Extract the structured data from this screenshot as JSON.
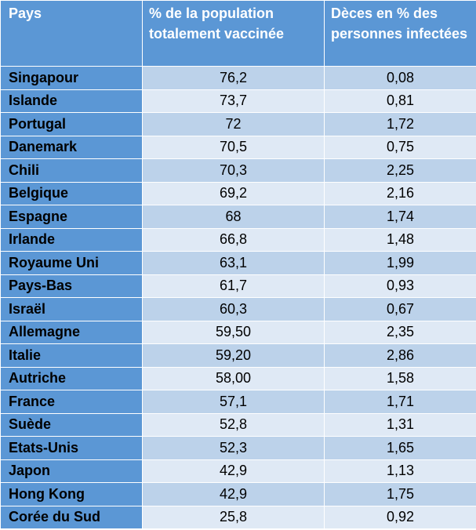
{
  "headers": {
    "country": "Pays",
    "vaccinated": "% de la population totalement vaccinée",
    "deaths": "Dèces en % des personnes infectées"
  },
  "rows": [
    {
      "country": "Singapour",
      "vaccinated": "76,2",
      "deaths": "0,08"
    },
    {
      "country": "Islande",
      "vaccinated": "73,7",
      "deaths": "0,81"
    },
    {
      "country": "Portugal",
      "vaccinated": "72",
      "deaths": "1,72"
    },
    {
      "country": "Danemark",
      "vaccinated": "70,5",
      "deaths": "0,75"
    },
    {
      "country": "Chili",
      "vaccinated": "70,3",
      "deaths": "2,25"
    },
    {
      "country": "Belgique",
      "vaccinated": "69,2",
      "deaths": "2,16"
    },
    {
      "country": "Espagne",
      "vaccinated": "68",
      "deaths": "1,74"
    },
    {
      "country": "Irlande",
      "vaccinated": "66,8",
      "deaths": "1,48"
    },
    {
      "country": "Royaume Uni",
      "vaccinated": "63,1",
      "deaths": "1,99"
    },
    {
      "country": "Pays-Bas",
      "vaccinated": "61,7",
      "deaths": "0,93"
    },
    {
      "country": "Israël",
      "vaccinated": "60,3",
      "deaths": "0,67"
    },
    {
      "country": "Allemagne",
      "vaccinated": "59,50",
      "deaths": "2,35"
    },
    {
      "country": "Italie",
      "vaccinated": "59,20",
      "deaths": "2,86"
    },
    {
      "country": "Autriche",
      "vaccinated": "58,00",
      "deaths": "1,58"
    },
    {
      "country": "France",
      "vaccinated": "57,1",
      "deaths": "1,71"
    },
    {
      "country": "Suède",
      "vaccinated": "52,8",
      "deaths": "1,31"
    },
    {
      "country": "Etats-Unis",
      "vaccinated": "52,3",
      "deaths": "1,65"
    },
    {
      "country": "Japon",
      "vaccinated": "42,9",
      "deaths": "1,13"
    },
    {
      "country": "Hong Kong",
      "vaccinated": "42,9",
      "deaths": "1,75"
    },
    {
      "country": "Corée du Sud",
      "vaccinated": "25,8",
      "deaths": "0,92"
    }
  ]
}
